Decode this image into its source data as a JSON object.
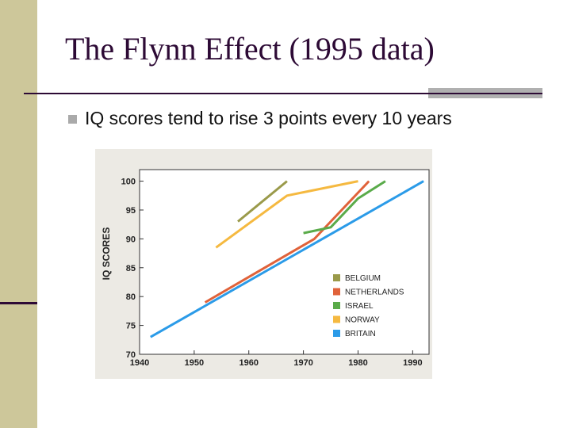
{
  "slide": {
    "title": "The Flynn Effect (1995 data)",
    "bullet": "IQ scores tend to rise 3 points every 10 years"
  },
  "chart_data": {
    "type": "line",
    "xlabel": "",
    "ylabel": "IQ SCORES",
    "xlim": [
      1940,
      1993
    ],
    "ylim": [
      70,
      102
    ],
    "x_ticks": [
      "1940",
      "1950",
      "1960",
      "1970",
      "1980",
      "1990"
    ],
    "y_ticks": [
      "70",
      "75",
      "80",
      "85",
      "90",
      "95",
      "100"
    ],
    "legend_position": "lower-right",
    "series": [
      {
        "name": "BELGIUM",
        "color": "#9a9a4a",
        "points": [
          [
            1958,
            93
          ],
          [
            1967,
            100
          ]
        ]
      },
      {
        "name": "NETHERLANDS",
        "color": "#e0623a",
        "points": [
          [
            1952,
            79
          ],
          [
            1962,
            84.5
          ],
          [
            1972,
            90
          ],
          [
            1982,
            100
          ]
        ]
      },
      {
        "name": "ISRAEL",
        "color": "#5aab4a",
        "points": [
          [
            1970,
            91
          ],
          [
            1975,
            92
          ],
          [
            1980,
            97
          ],
          [
            1985,
            100
          ]
        ]
      },
      {
        "name": "NORWAY",
        "color": "#f5b940",
        "points": [
          [
            1954,
            88.5
          ],
          [
            1967,
            97.5
          ],
          [
            1980,
            100
          ]
        ]
      },
      {
        "name": "BRITAIN",
        "color": "#2b9be8",
        "points": [
          [
            1942,
            73
          ],
          [
            1992,
            100
          ]
        ]
      }
    ]
  }
}
